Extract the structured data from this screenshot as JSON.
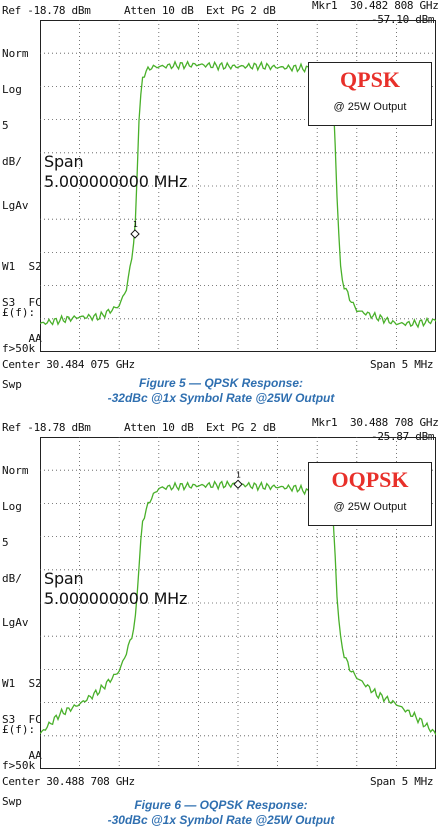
{
  "charts": [
    {
      "id": "p1",
      "ref": "Ref -18.78 dBm",
      "atten": "Atten 10 dB",
      "ext": "Ext PG 2 dB",
      "mkr_label": "Mkr1",
      "mkr_freq": "30.482 808 GHz",
      "mkr_level": "-57.10 dBm",
      "side_top": [
        "Norm",
        "Log",
        "5",
        "dB/"
      ],
      "side_mid": [
        "LgAv"
      ],
      "side_low": [
        "W1  S2",
        "S3  FC",
        "    AA"
      ],
      "side_bottom": [
        "£(f):",
        "f>50k",
        "Swp"
      ],
      "span_label": "Span",
      "span_value": "5.000000000 MHz",
      "center": "Center 30.484 075 GHz",
      "span_right": "Span 5 MHz",
      "legend_title": "QPSK",
      "legend_sub": "@ 25W Output",
      "marker_label": "1",
      "caption_line1": "Figure 5 — QPSK Response:",
      "caption_line2": "-32dBc @1x Symbol Rate @25W Output"
    },
    {
      "id": "p2",
      "ref": "Ref -18.78 dBm",
      "atten": "Atten 10 dB",
      "ext": "Ext PG 2 dB",
      "mkr_label": "Mkr1",
      "mkr_freq": "30.488 708 GHz",
      "mkr_level": "-25.87 dBm",
      "side_top": [
        "Norm",
        "Log",
        "5",
        "dB/"
      ],
      "side_mid": [
        "LgAv"
      ],
      "side_low": [
        "W1  S2",
        "S3  FC",
        "    AA"
      ],
      "side_bottom": [
        "£(f):",
        "f>50k",
        "Swp"
      ],
      "span_label": "Span",
      "span_value": "5.000000000 MHz",
      "center": "Center 30.488 708 GHz",
      "span_right": "Span 5 MHz",
      "legend_title": "OQPSK",
      "legend_sub": "@ 25W Output",
      "marker_label": "1",
      "caption_line1": "Figure 6 — OQPSK Response:",
      "caption_line2": "-30dBc @1x Symbol Rate @25W Output"
    }
  ],
  "chart_data": [
    {
      "type": "line",
      "title": "QPSK",
      "ylim": [
        -68.78,
        -18.78
      ],
      "x": [
        -2.5,
        -2.25,
        -2.0,
        -1.75,
        -1.5,
        -1.4,
        -1.3,
        -1.25,
        -1.2,
        -1.1,
        -1.0,
        -0.75,
        -0.5,
        -0.25,
        0.0,
        0.25,
        0.5,
        0.75,
        1.0,
        1.1,
        1.2,
        1.25,
        1.3,
        1.4,
        1.5,
        1.75,
        2.0,
        2.25,
        2.5
      ],
      "values": [
        -64.5,
        -64.0,
        -63.5,
        -63.5,
        -61.8,
        -59.0,
        -51.0,
        -33.5,
        -27.0,
        -25.9,
        -25.8,
        -25.6,
        -25.5,
        -25.7,
        -25.8,
        -25.7,
        -25.9,
        -26.0,
        -26.2,
        -27.0,
        -30.0,
        -45.0,
        -57.5,
        -60.5,
        -62.5,
        -63.5,
        -64.5,
        -64.5,
        -64.0
      ],
      "grid": true,
      "color": "#49b02a"
    },
    {
      "type": "line",
      "title": "OQPSK",
      "ylim": [
        -68.78,
        -18.78
      ],
      "x": [
        -2.5,
        -2.25,
        -2.0,
        -1.75,
        -1.5,
        -1.4,
        -1.3,
        -1.25,
        -1.2,
        -1.1,
        -1.0,
        -0.75,
        -0.5,
        -0.25,
        0.0,
        0.25,
        0.5,
        0.75,
        1.0,
        1.1,
        1.2,
        1.25,
        1.3,
        1.4,
        1.5,
        1.75,
        2.0,
        2.25,
        2.5
      ],
      "values": [
        -63.5,
        -60.5,
        -59.0,
        -57.0,
        -54.0,
        -51.0,
        -47.0,
        -38.0,
        -31.0,
        -28.0,
        -26.5,
        -26.2,
        -26.1,
        -26.0,
        -25.9,
        -26.2,
        -26.3,
        -26.5,
        -27.5,
        -29.0,
        -31.0,
        -42.5,
        -50.0,
        -53.5,
        -55.0,
        -57.5,
        -59.0,
        -61.0,
        -63.5
      ],
      "grid": true,
      "color": "#49b02a"
    }
  ]
}
